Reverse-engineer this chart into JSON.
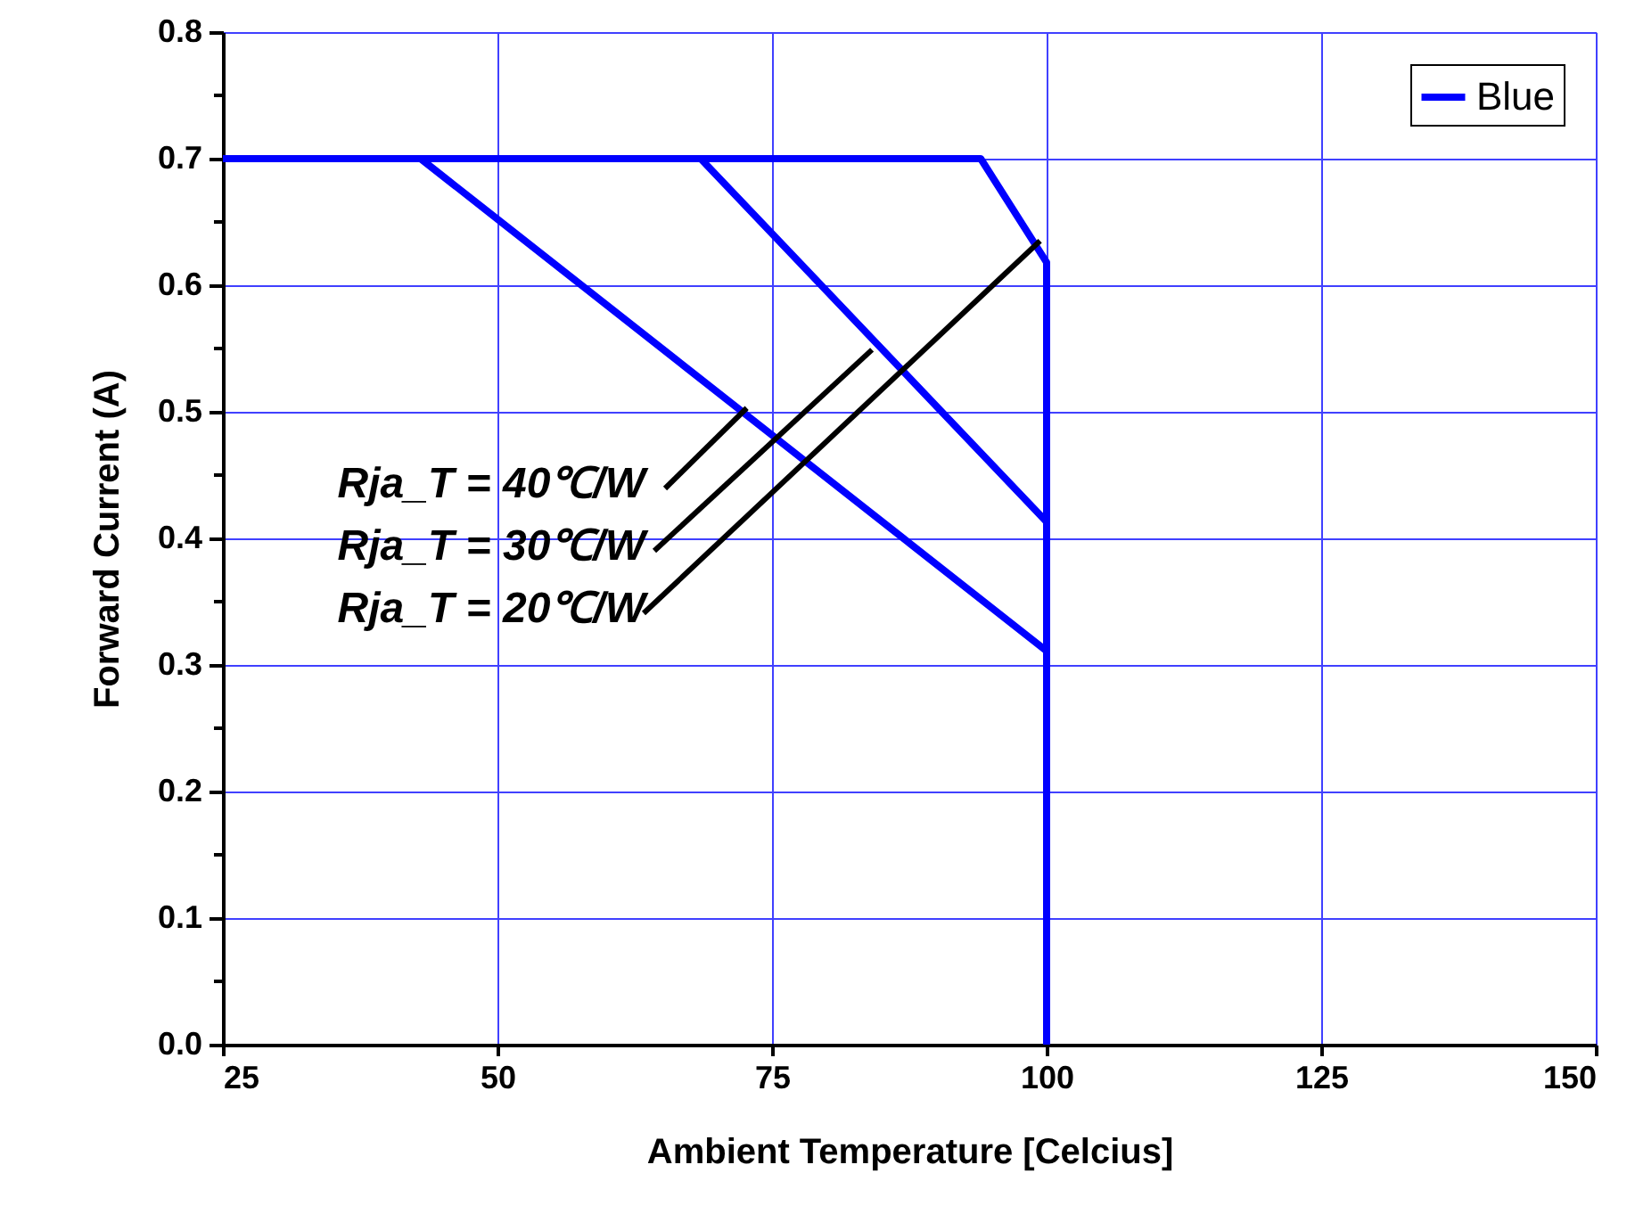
{
  "chart_data": {
    "type": "line",
    "xlabel": "Ambient Temperature [Celcius]",
    "ylabel": "Forward Current (A)",
    "series": [
      {
        "name": "Blue",
        "color": "#0000ff",
        "x": [
          25,
          94,
          100,
          100
        ],
        "values": [
          0.7,
          0.7,
          0.618,
          0
        ]
      },
      {
        "color": "#0000ff",
        "x": [
          25,
          68.5,
          100,
          100
        ],
        "values": [
          0.7,
          0.7,
          0.413,
          0
        ]
      },
      {
        "color": "#0000ff",
        "x": [
          25,
          43,
          100,
          100
        ],
        "values": [
          0.7,
          0.7,
          0.311,
          0
        ]
      }
    ],
    "xlim": [
      25,
      150
    ],
    "xticks": [
      25,
      50,
      75,
      100,
      125,
      150
    ],
    "ylim": [
      0,
      0.8
    ],
    "yticks": [
      {
        "value": 0,
        "label": "0.0"
      },
      {
        "value": 0.05,
        "label": null
      },
      0.1,
      {
        "value": 0.15,
        "label": null
      },
      0.2,
      {
        "value": 0.25,
        "label": null
      },
      0.3,
      {
        "value": 0.35,
        "label": null
      },
      0.4,
      {
        "value": 0.45,
        "label": null
      },
      0.5,
      {
        "value": 0.55,
        "label": null
      },
      0.6,
      {
        "value": 0.65,
        "label": null
      },
      0.7,
      {
        "value": 0.75,
        "label": null
      },
      0.8
    ],
    "annotations": [
      {
        "text": "Rja_T = 40℃/W",
        "x": 72.7,
        "y": 0.503
      },
      {
        "text": "Rja_T = 30℃/W",
        "x": 84.1,
        "y": 0.549
      },
      {
        "text": "Rja_T = 20℃/W",
        "x": 99.4,
        "y": 0.635
      }
    ],
    "grid": true,
    "legend": "top right",
    "marker": "none",
    "line_style": "solid"
  }
}
